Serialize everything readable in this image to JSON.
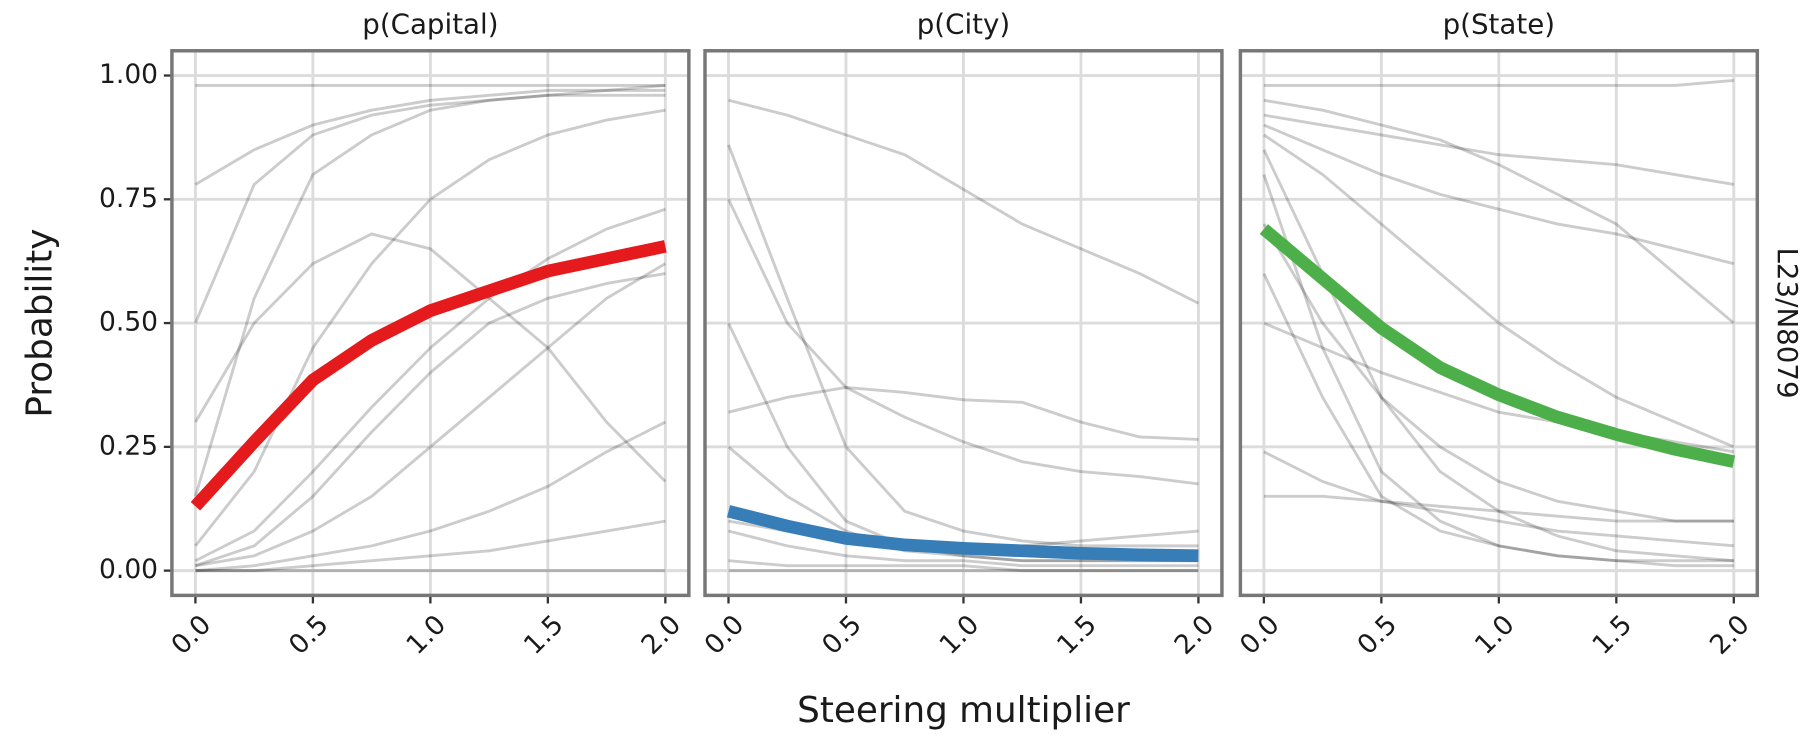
{
  "chart_data": [
    {
      "type": "line",
      "title": "p(Capital)",
      "ylabel": "Probability",
      "x": [
        0,
        0.25,
        0.5,
        0.75,
        1.0,
        1.25,
        1.5,
        1.75,
        2.0
      ],
      "xlim": [
        -0.1,
        2.1
      ],
      "ylim": [
        -0.05,
        1.05
      ],
      "xticks": [
        {
          "value": 0,
          "label": "0.0"
        },
        0.5,
        {
          "value": 1,
          "label": "1.0"
        },
        1.5,
        {
          "value": 2,
          "label": "2.0"
        }
      ],
      "yticks": [
        {
          "value": 0,
          "label": "0.00"
        },
        0.25,
        {
          "value": 0.5,
          "label": "0.50"
        },
        0.75,
        {
          "value": 1,
          "label": "1.00"
        }
      ],
      "grid": true,
      "series": [
        {
          "color": "#000000",
          "opacity": 0.2,
          "values": [
            0.78,
            0.85,
            0.9,
            0.93,
            0.95,
            0.96,
            0.97,
            0.97,
            0.98
          ]
        },
        {
          "color": "#000000",
          "opacity": 0.2,
          "values": [
            0.98,
            0.98,
            0.98,
            0.98,
            0.98,
            0.98,
            0.98,
            0.98,
            0.98
          ]
        },
        {
          "color": "#000000",
          "opacity": 0.2,
          "values": [
            0.15,
            0.55,
            0.8,
            0.88,
            0.93,
            0.95,
            0.96,
            0.97,
            0.97
          ]
        },
        {
          "color": "#000000",
          "opacity": 0.2,
          "values": [
            0.05,
            0.2,
            0.45,
            0.62,
            0.75,
            0.83,
            0.88,
            0.91,
            0.93
          ]
        },
        {
          "color": "#000000",
          "opacity": 0.2,
          "values": [
            0.02,
            0.08,
            0.2,
            0.33,
            0.45,
            0.55,
            0.63,
            0.69,
            0.73
          ]
        },
        {
          "color": "#000000",
          "opacity": 0.2,
          "values": [
            0.01,
            0.03,
            0.08,
            0.15,
            0.25,
            0.35,
            0.45,
            0.55,
            0.62
          ]
        },
        {
          "color": "#000000",
          "opacity": 0.2,
          "values": [
            0,
            0.01,
            0.03,
            0.05,
            0.08,
            0.12,
            0.17,
            0.24,
            0.3
          ]
        },
        {
          "color": "#000000",
          "opacity": 0.2,
          "values": [
            0,
            0,
            0.01,
            0.02,
            0.03,
            0.04,
            0.06,
            0.08,
            0.1
          ]
        },
        {
          "color": "#000000",
          "opacity": 0.2,
          "values": [
            0.5,
            0.78,
            0.88,
            0.92,
            0.94,
            0.95,
            0.96,
            0.96,
            0.96
          ]
        },
        {
          "color": "#000000",
          "opacity": 0.2,
          "values": [
            0.3,
            0.5,
            0.62,
            0.68,
            0.65,
            0.55,
            0.45,
            0.3,
            0.18
          ]
        },
        {
          "color": "#000000",
          "opacity": 0.2,
          "values": [
            0.01,
            0.05,
            0.15,
            0.28,
            0.4,
            0.5,
            0.55,
            0.58,
            0.6
          ]
        },
        {
          "color": "#000000",
          "opacity": 0.2,
          "values": [
            0,
            0,
            0,
            0,
            0,
            0,
            0,
            0,
            0
          ]
        },
        {
          "color": "#e41a1c",
          "values": [
            0.13,
            0.26,
            0.385,
            0.465,
            0.525,
            0.565,
            0.605,
            0.63,
            0.655
          ]
        }
      ]
    },
    {
      "type": "line",
      "title": "p(City)",
      "xlabel": "Steering multiplier",
      "x": [
        0,
        0.25,
        0.5,
        0.75,
        1.0,
        1.25,
        1.5,
        1.75,
        2.0
      ],
      "xlim": [
        -0.1,
        2.1
      ],
      "ylim": [
        -0.05,
        1.05
      ],
      "xticks": [
        {
          "value": 0,
          "label": "0.0"
        },
        0.5,
        {
          "value": 1,
          "label": "1.0"
        },
        1.5,
        {
          "value": 2,
          "label": "2.0"
        }
      ],
      "yticks": [
        0,
        0.25,
        0.5,
        0.75,
        1
      ],
      "grid": true,
      "series": [
        {
          "color": "#000000",
          "opacity": 0.2,
          "values": [
            0.95,
            0.92,
            0.88,
            0.84,
            0.77,
            0.7,
            0.65,
            0.6,
            0.54
          ]
        },
        {
          "color": "#000000",
          "opacity": 0.2,
          "values": [
            0.86,
            0.55,
            0.25,
            0.12,
            0.08,
            0.06,
            0.05,
            0.05,
            0.05
          ]
        },
        {
          "color": "#000000",
          "opacity": 0.2,
          "values": [
            0.75,
            0.5,
            0.37,
            0.31,
            0.26,
            0.22,
            0.2,
            0.19,
            0.175
          ]
        },
        {
          "color": "#000000",
          "opacity": 0.2,
          "values": [
            0.32,
            0.35,
            0.37,
            0.36,
            0.345,
            0.34,
            0.3,
            0.27,
            0.265
          ]
        },
        {
          "color": "#000000",
          "opacity": 0.2,
          "values": [
            0.5,
            0.25,
            0.1,
            0.05,
            0.03,
            0.02,
            0.02,
            0.02,
            0.02
          ]
        },
        {
          "color": "#000000",
          "opacity": 0.2,
          "values": [
            0.25,
            0.15,
            0.08,
            0.04,
            0.03,
            0.02,
            0.02,
            0.02,
            0.02
          ]
        },
        {
          "color": "#000000",
          "opacity": 0.2,
          "values": [
            0.08,
            0.05,
            0.03,
            0.02,
            0.02,
            0.01,
            0.01,
            0.01,
            0.01
          ]
        },
        {
          "color": "#000000",
          "opacity": 0.2,
          "values": [
            0.02,
            0.01,
            0.01,
            0.01,
            0.01,
            0,
            0,
            0,
            0
          ]
        },
        {
          "color": "#000000",
          "opacity": 0.2,
          "values": [
            0,
            0,
            0,
            0,
            0,
            0,
            0,
            0,
            0
          ]
        },
        {
          "color": "#000000",
          "opacity": 0.2,
          "values": [
            0.1,
            0.08,
            0.06,
            0.05,
            0.05,
            0.05,
            0.06,
            0.07,
            0.08
          ]
        },
        {
          "color": "#377eb8",
          "values": [
            0.12,
            0.09,
            0.065,
            0.052,
            0.045,
            0.04,
            0.035,
            0.032,
            0.03
          ]
        }
      ]
    },
    {
      "type": "line",
      "title": "p(State)",
      "row_label": "L23/N8079",
      "x": [
        0,
        0.25,
        0.5,
        0.75,
        1.0,
        1.25,
        1.5,
        1.75,
        2.0
      ],
      "xlim": [
        -0.1,
        2.1
      ],
      "ylim": [
        -0.05,
        1.05
      ],
      "xticks": [
        {
          "value": 0,
          "label": "0.0"
        },
        0.5,
        {
          "value": 1,
          "label": "1.0"
        },
        1.5,
        {
          "value": 2,
          "label": "2.0"
        }
      ],
      "yticks": [
        0,
        0.25,
        0.5,
        0.75,
        1
      ],
      "grid": true,
      "series": [
        {
          "color": "#000000",
          "opacity": 0.2,
          "values": [
            0.98,
            0.98,
            0.98,
            0.98,
            0.98,
            0.98,
            0.98,
            0.98,
            0.99
          ]
        },
        {
          "color": "#000000",
          "opacity": 0.2,
          "values": [
            0.95,
            0.93,
            0.9,
            0.87,
            0.82,
            0.76,
            0.7,
            0.6,
            0.5
          ]
        },
        {
          "color": "#000000",
          "opacity": 0.2,
          "values": [
            0.9,
            0.85,
            0.8,
            0.76,
            0.73,
            0.7,
            0.68,
            0.65,
            0.62
          ]
        },
        {
          "color": "#000000",
          "opacity": 0.2,
          "values": [
            0.85,
            0.6,
            0.35,
            0.2,
            0.12,
            0.07,
            0.04,
            0.03,
            0.02
          ]
        },
        {
          "color": "#000000",
          "opacity": 0.2,
          "values": [
            0.8,
            0.45,
            0.2,
            0.1,
            0.05,
            0.03,
            0.02,
            0.01,
            0.01
          ]
        },
        {
          "color": "#000000",
          "opacity": 0.2,
          "values": [
            0.7,
            0.5,
            0.35,
            0.25,
            0.18,
            0.14,
            0.12,
            0.1,
            0.1
          ]
        },
        {
          "color": "#000000",
          "opacity": 0.2,
          "values": [
            0.6,
            0.35,
            0.15,
            0.08,
            0.05,
            0.03,
            0.02,
            0.02,
            0.02
          ]
        },
        {
          "color": "#000000",
          "opacity": 0.2,
          "values": [
            0.5,
            0.45,
            0.4,
            0.36,
            0.32,
            0.3,
            0.28,
            0.26,
            0.24
          ]
        },
        {
          "color": "#000000",
          "opacity": 0.2,
          "values": [
            0.24,
            0.18,
            0.14,
            0.12,
            0.1,
            0.08,
            0.07,
            0.06,
            0.05
          ]
        },
        {
          "color": "#000000",
          "opacity": 0.2,
          "values": [
            0.15,
            0.15,
            0.14,
            0.13,
            0.12,
            0.11,
            0.1,
            0.1,
            0.1
          ]
        },
        {
          "color": "#000000",
          "opacity": 0.2,
          "values": [
            0.88,
            0.8,
            0.7,
            0.6,
            0.5,
            0.42,
            0.35,
            0.3,
            0.25
          ]
        },
        {
          "color": "#000000",
          "opacity": 0.2,
          "values": [
            0.92,
            0.9,
            0.88,
            0.86,
            0.84,
            0.83,
            0.82,
            0.8,
            0.78
          ]
        },
        {
          "color": "#4daf4a",
          "values": [
            0.69,
            0.59,
            0.49,
            0.41,
            0.355,
            0.31,
            0.275,
            0.245,
            0.22
          ]
        }
      ]
    }
  ]
}
